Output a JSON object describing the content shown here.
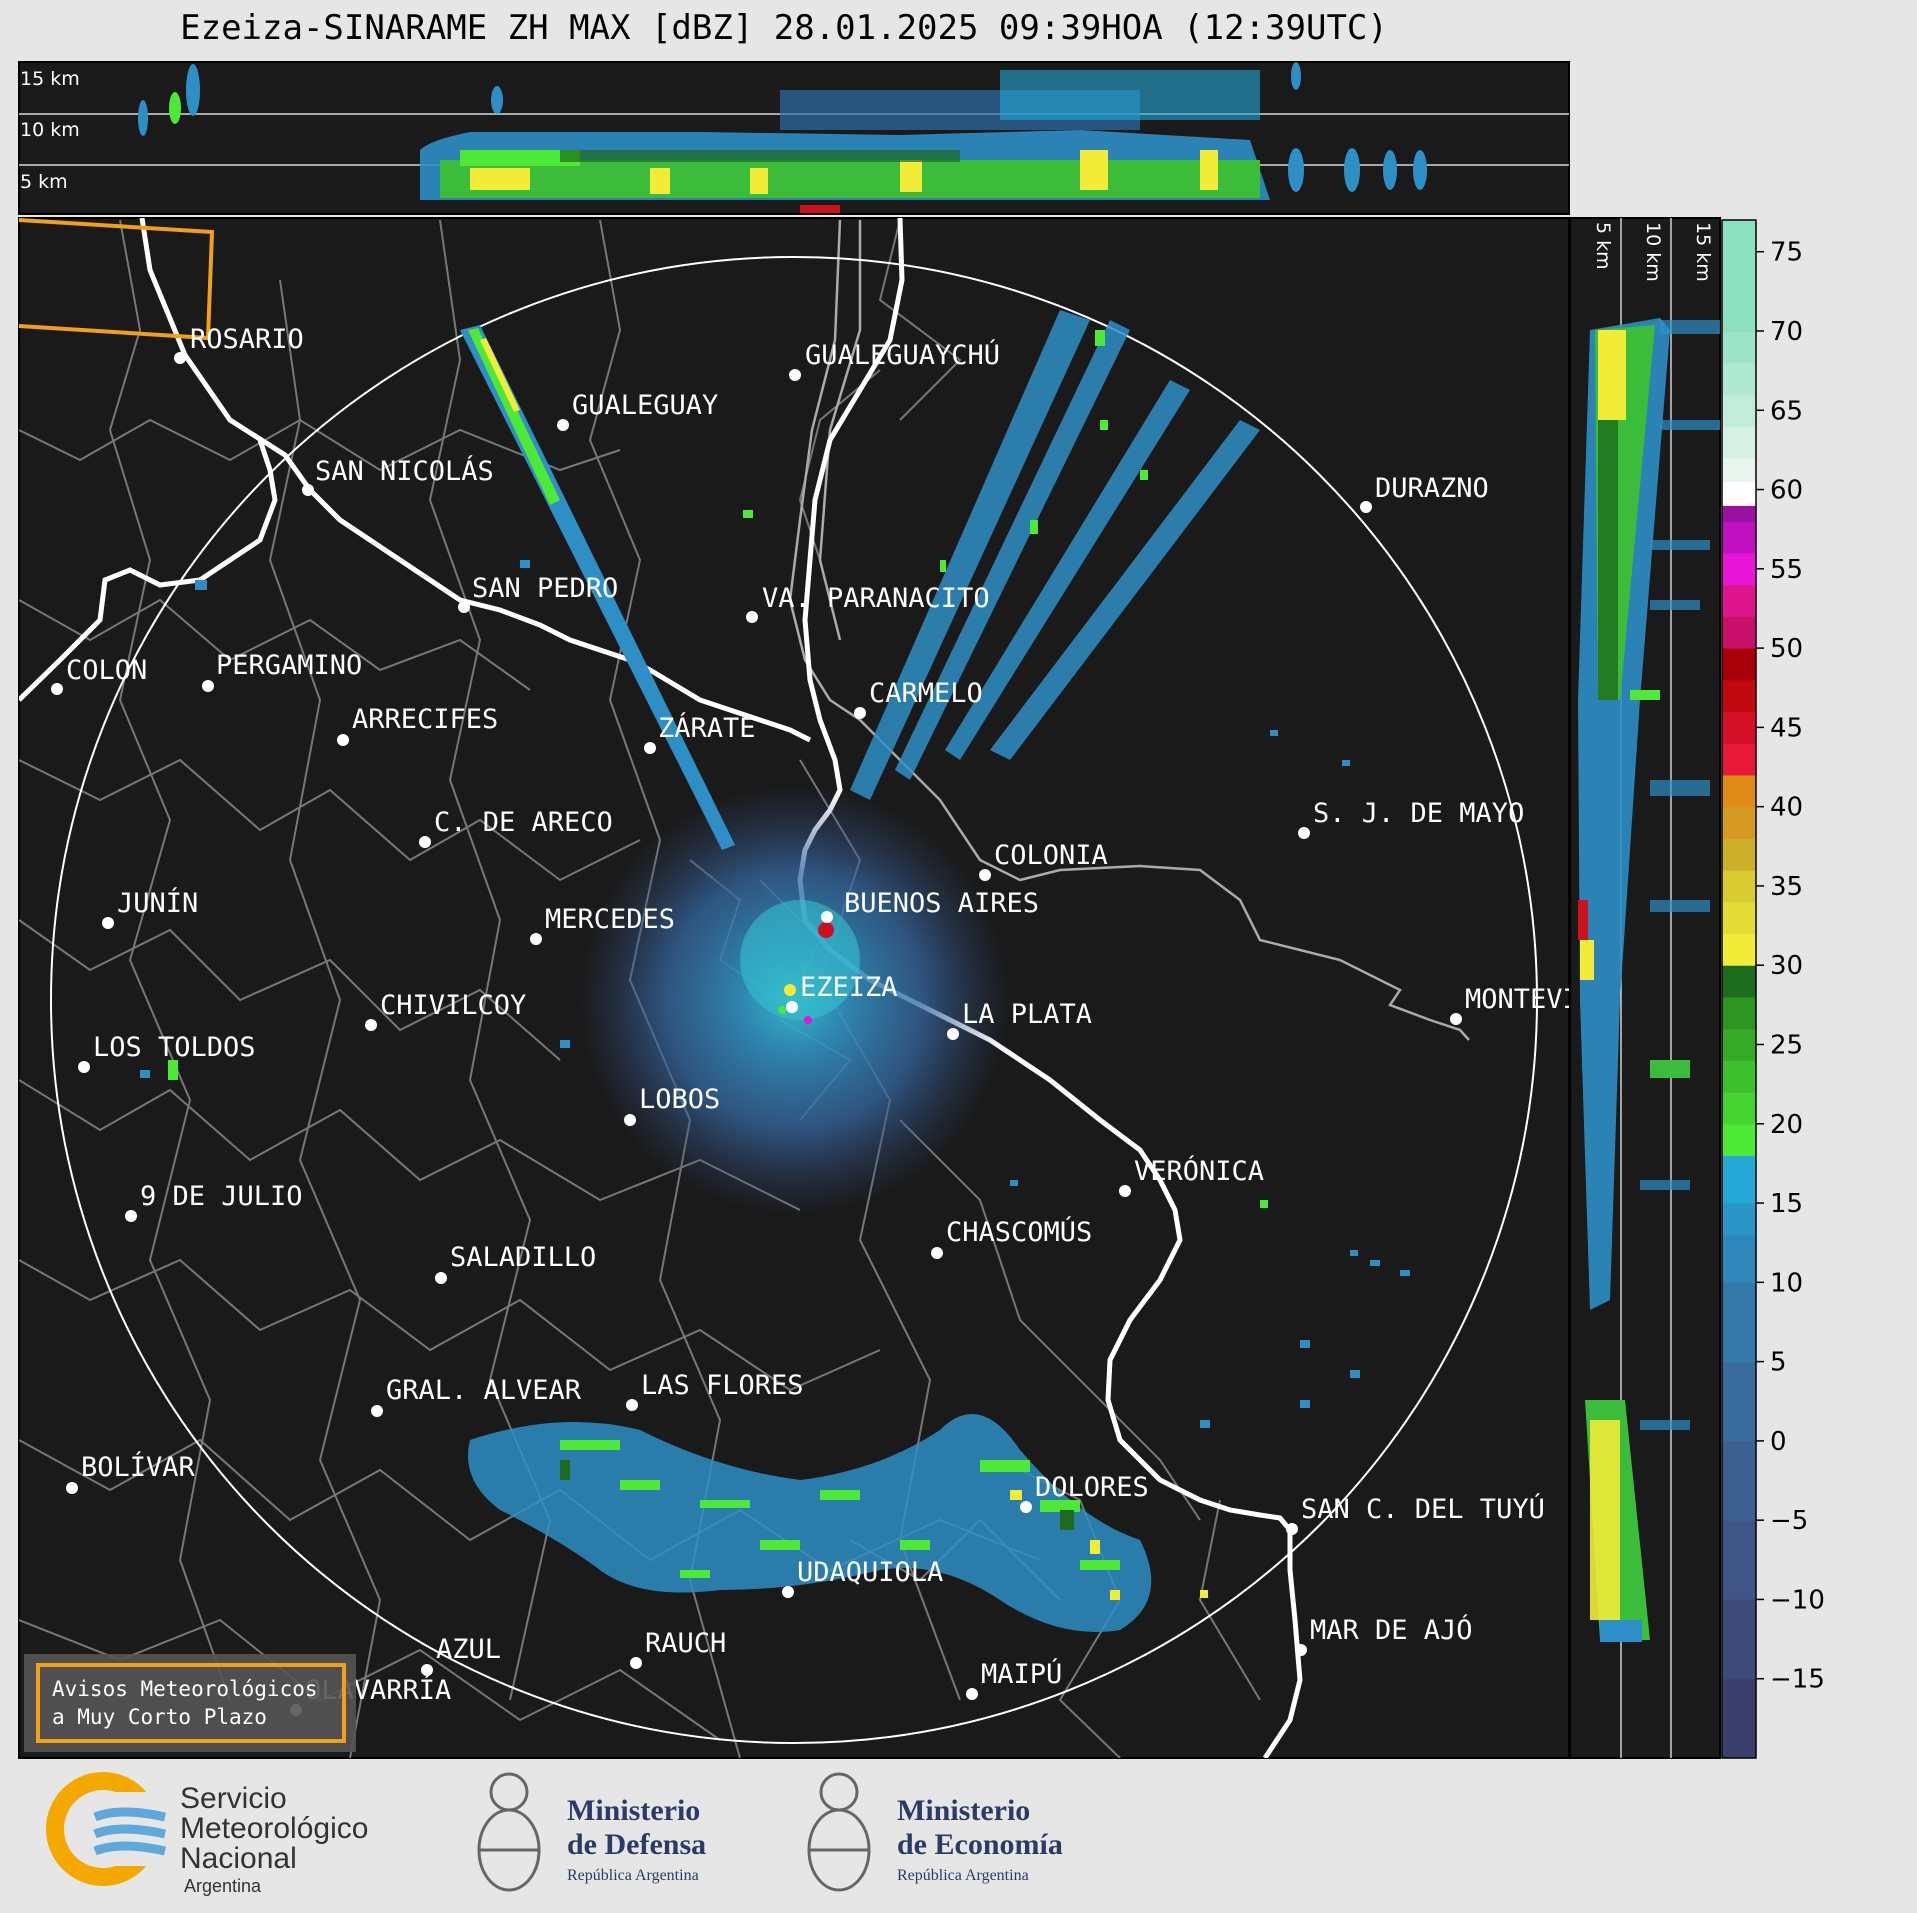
{
  "title": "Ezeiza-SINARAME ZH MAX [dBZ] 28.01.2025 09:39HOA (12:39UTC)",
  "top_panel": {
    "height_labels": [
      "15 km",
      "10 km",
      "5 km"
    ]
  },
  "side_panel": {
    "height_labels": [
      "5 km",
      "10 km",
      "15 km"
    ]
  },
  "colorbar": {
    "ticks": [
      "75",
      "70",
      "65",
      "60",
      "55",
      "50",
      "45",
      "40",
      "35",
      "30",
      "25",
      "20",
      "15",
      "10",
      "5",
      "0",
      "−5",
      "−10",
      "−15"
    ],
    "colors": {
      "blue_low": "#3b4a7a",
      "blue_mid": "#2f6fa8",
      "cyan": "#25a8d6",
      "green": "#4ee836",
      "dark_green": "#1d6b1d",
      "yellow": "#f2ec38",
      "orange": "#e08a18",
      "red": "#cc1020",
      "magenta": "#e815d6",
      "white": "#ffffff",
      "mint": "#8ce0c0"
    }
  },
  "map": {
    "cities": [
      "ROSARIO",
      "GUALEGUAYCHÚ",
      "GUALEGUAY",
      "SAN NICOLÁS",
      "DURAZNO",
      "SAN PEDRO",
      "VA. PARANACITO",
      "COLON",
      "PERGAMINO",
      "CARMELO",
      "ARRECIFES",
      "ZÁRATE",
      "S. J. DE MAYO",
      "C. DE ARECO",
      "COLONIA",
      "JUNÍN",
      "MERCEDES",
      "BUENOS AIRES",
      "EZEIZA",
      "CHIVILCOY",
      "LA PLATA",
      "MONTEVIDEO",
      "LOS TOLDOS",
      "LOBOS",
      "VERÓNICA",
      "9 DE JULIO",
      "CHASCOMÚS",
      "SALADILLO",
      "GRAL. ALVEAR",
      "LAS FLORES",
      "BOLÍVAR",
      "DOLORES",
      "SAN C. DEL TUYÚ",
      "UDAQUIOLA",
      "AZUL",
      "RAUCH",
      "MAR DE AJÓ",
      "OLAVARRÍA",
      "MAIPÚ"
    ],
    "notice_box": [
      "Avisos Meteorológicos",
      "a Muy Corto Plazo"
    ]
  },
  "logos": {
    "smn": [
      "Servicio",
      "Meteorológico",
      "Nacional",
      "Argentina"
    ],
    "defensa": [
      "Ministerio",
      "de Defensa",
      "República Argentina"
    ],
    "economia": [
      "Ministerio",
      "de Economía",
      "República Argentina"
    ]
  }
}
